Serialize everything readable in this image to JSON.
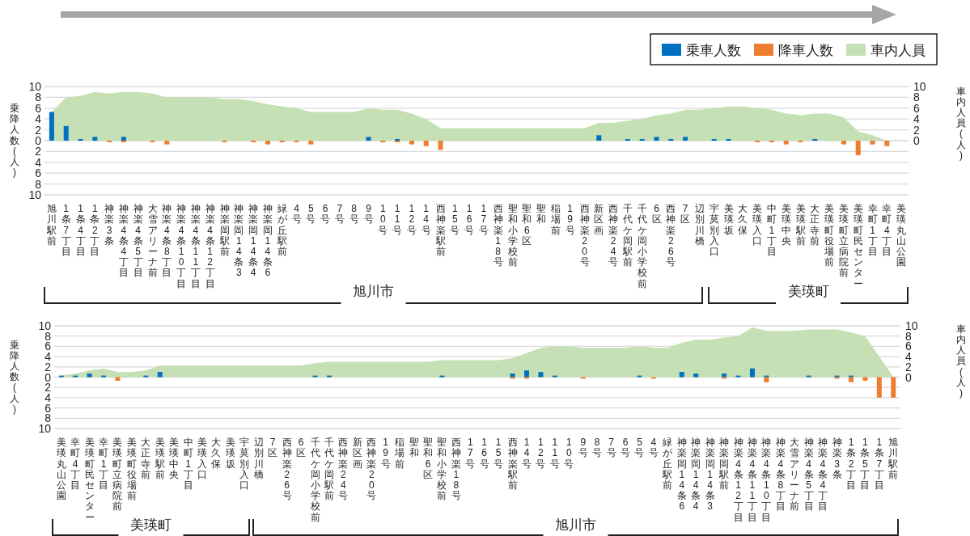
{
  "chart_data": [
    {
      "type": "bar",
      "ylabel": "乗降人数(人)",
      "y2label": "車内人員(人)",
      "legend": "top right",
      "grid": "y",
      "ylim": [
        -10,
        10
      ],
      "y2lim": [
        -10,
        10
      ],
      "yticks": [
        10,
        8,
        6,
        4,
        2,
        0,
        {
          "value": -2,
          "label": "2"
        },
        {
          "value": -4,
          "label": "4"
        },
        {
          "value": -6,
          "label": "6"
        },
        {
          "value": -8,
          "label": "8"
        },
        {
          "value": -10,
          "label": "10"
        }
      ],
      "y2ticks": [
        0,
        2,
        4,
        6,
        8,
        10
      ],
      "annotations": [
        "旭川市",
        "美瑛町"
      ],
      "categories": [
        "旭川駅前",
        "1条7丁目",
        "1条4丁目",
        "1条2丁目",
        "神楽3条",
        "神楽4条4丁目",
        "神楽4条5丁目",
        "大雪アリーナ前",
        "神楽4条8丁目",
        "神楽4条10丁目",
        "神楽4条11丁目",
        "神楽4条12丁目",
        "神楽岡駅前",
        "神楽岡14条3",
        "神楽岡14条4",
        "神楽岡14条6",
        "緑が丘駅前",
        "4号",
        "5号",
        "6号",
        "7号",
        "8号",
        "9号",
        "10号",
        "11号",
        "12号",
        "14号",
        "西神楽駅前",
        "15号",
        "16号",
        "17号",
        "西神楽18号",
        "聖和小学校前",
        "聖和6区",
        "聖和",
        "稲場前",
        "19号",
        "西神楽20号",
        "新区画",
        "西神楽24号",
        "千代ケ岡駅前",
        "千代ケ岡小学校前",
        "6区",
        "西神楽26号",
        "7区",
        "辺別川橋",
        "宇莫別入口",
        "美瑛坂",
        "大久保",
        "美瑛入口",
        "中町1丁目",
        "美瑛中央",
        "美瑛駅前",
        "大正寺前",
        "美瑛町役場前",
        "美瑛町立病院前",
        "美瑛町民センター",
        "幸町1丁目",
        "幸町4丁目",
        "美瑛丸山公園"
      ],
      "series": [
        {
          "name": "乗車人数",
          "color": "#0070c0",
          "values": [
            5.3,
            2.7,
            0.3,
            0.7,
            0,
            0.7,
            0,
            0,
            0,
            0,
            0,
            0,
            0,
            0,
            0,
            0,
            0,
            0,
            0,
            0,
            0,
            0,
            0.7,
            0,
            0.3,
            0,
            0,
            0,
            0,
            0,
            0,
            0,
            0,
            0,
            0,
            0,
            0,
            0,
            1.0,
            0,
            0.3,
            0.3,
            0.7,
            0.3,
            0.7,
            0,
            0.3,
            0.3,
            0,
            0,
            0,
            0,
            0,
            0.3,
            0,
            0,
            0,
            0,
            0,
            0
          ]
        },
        {
          "name": "降車人数",
          "color": "#ed7d31",
          "values": [
            0,
            0,
            0,
            0,
            -0.3,
            -0.3,
            0,
            -0.3,
            -0.7,
            0,
            0,
            0,
            -0.3,
            0,
            -0.3,
            -0.7,
            -0.3,
            -0.3,
            -0.7,
            0,
            0,
            0,
            0,
            -0.3,
            -0.3,
            -0.7,
            -1.0,
            -1.7,
            0,
            0,
            0,
            0,
            0,
            0,
            0,
            0,
            0,
            0,
            0,
            0,
            0,
            0,
            0,
            0,
            0,
            0,
            0,
            0,
            0,
            -0.3,
            -0.3,
            -0.7,
            -0.3,
            0,
            0,
            -0.7,
            -2.7,
            -0.7,
            -1.0,
            0
          ]
        },
        {
          "name": "車内人員",
          "type": "area",
          "axis": "y2",
          "color": "#c5e0b4",
          "values": [
            5.3,
            8.0,
            8.3,
            9.0,
            8.7,
            9.0,
            9.0,
            8.7,
            8.0,
            8.0,
            8.0,
            8.0,
            7.7,
            7.7,
            7.3,
            6.7,
            6.3,
            6.0,
            5.3,
            5.3,
            5.3,
            5.3,
            6.0,
            5.7,
            5.7,
            5.0,
            4.0,
            2.3,
            2.3,
            2.3,
            2.3,
            2.3,
            2.3,
            2.3,
            2.3,
            2.3,
            2.3,
            2.3,
            3.3,
            3.3,
            3.7,
            4.0,
            4.7,
            5.0,
            5.7,
            5.7,
            6.0,
            6.3,
            6.3,
            6.0,
            5.7,
            5.0,
            4.7,
            5.0,
            5.0,
            4.3,
            1.7,
            1.0,
            0,
            null
          ]
        }
      ]
    },
    {
      "type": "bar",
      "ylabel": "乗降人数(人)",
      "y2label": "車内人員(人)",
      "grid": "y",
      "ylim": [
        -10,
        10
      ],
      "y2lim": [
        -10,
        10
      ],
      "yticks": [
        10,
        8,
        6,
        4,
        2,
        0,
        {
          "value": -2,
          "label": "2"
        },
        {
          "value": -4,
          "label": "4"
        },
        {
          "value": -6,
          "label": "6"
        },
        {
          "value": -8,
          "label": "8"
        },
        {
          "value": -10,
          "label": "10"
        }
      ],
      "y2ticks": [
        0,
        2,
        4,
        6,
        8,
        10
      ],
      "annotations": [
        "美瑛町",
        "旭川市"
      ],
      "categories": [
        "美瑛丸山公園",
        "幸町4丁目",
        "美瑛町民センター",
        "幸町1丁目",
        "美瑛町立病院前",
        "美瑛町役場前",
        "大正寺前",
        "美瑛駅前",
        "美瑛中央",
        "中町1丁目",
        "美瑛入口",
        "大久保",
        "美瑛坂",
        "宇莫別入口",
        "辺別川橋",
        "7区",
        "西神楽26号",
        "6区",
        "千代ケ岡小学校前",
        "千代ケ岡駅前",
        "西神楽24号",
        "新区画",
        "西神楽20号",
        "19号",
        "稲場前",
        "聖和",
        "聖和6区",
        "聖和小学校前",
        "西神楽18号",
        "17号",
        "16号",
        "15号",
        "西神楽駅前",
        "14号",
        "12号",
        "11号",
        "10号",
        "9号",
        "8号",
        "7号",
        "6号",
        "5号",
        "4号",
        "緑が丘駅前",
        "神楽岡14条6",
        "神楽岡14条4",
        "神楽岡14条3",
        "神楽岡駅前",
        "神楽4条12丁目",
        "神楽4条11丁目",
        "神楽4条10丁目",
        "神楽4条8丁目",
        "大雪アリーナ前",
        "神楽4条5丁目",
        "神楽4条4丁目",
        "神楽3条",
        "1条2丁目",
        "1条5丁目",
        "1条7丁目",
        "旭川駅前"
      ],
      "series": [
        {
          "color": "#0070c0",
          "values": [
            0.3,
            0.3,
            0.7,
            0.3,
            0,
            0,
            0.3,
            1.0,
            0,
            0,
            0,
            0,
            0,
            0,
            0,
            0,
            0,
            0,
            0.3,
            0.3,
            0,
            0,
            0,
            0,
            0,
            0,
            0,
            0.3,
            0,
            0,
            0,
            0,
            0.7,
            1.3,
            1.0,
            0.3,
            0,
            0,
            0,
            0,
            0,
            0.3,
            0,
            0,
            1.0,
            0.7,
            0,
            0.7,
            0.3,
            1.7,
            0.3,
            0,
            0,
            0.3,
            0,
            0.3,
            0.3,
            0,
            0,
            0
          ]
        },
        {
          "color": "#ed7d31",
          "values": [
            0,
            0,
            0,
            0,
            -0.7,
            0,
            0,
            0,
            0,
            0,
            0,
            0,
            0,
            0,
            0,
            0,
            0,
            0,
            0,
            0,
            0,
            0,
            0,
            0,
            0,
            0,
            0,
            0,
            0,
            0,
            0,
            0,
            -0.3,
            -0.3,
            0,
            0,
            0,
            -0.3,
            0,
            0,
            0,
            0,
            -0.3,
            0,
            0,
            0,
            0,
            -0.3,
            0,
            0,
            -1.0,
            0,
            0,
            0,
            0,
            -0.3,
            -1.0,
            -0.7,
            -4.0,
            -4.0
          ]
        },
        {
          "type": "area",
          "axis": "y2",
          "color": "#c5e0b4",
          "values": [
            0.3,
            0.7,
            1.3,
            1.7,
            1.0,
            1.0,
            1.3,
            2.3,
            2.3,
            2.3,
            2.3,
            2.3,
            2.3,
            2.3,
            2.3,
            2.3,
            2.3,
            2.3,
            2.7,
            3.0,
            3.0,
            3.0,
            3.0,
            3.0,
            3.0,
            3.0,
            3.0,
            3.3,
            3.3,
            3.3,
            3.3,
            3.3,
            3.7,
            4.7,
            5.7,
            6.0,
            6.0,
            5.7,
            5.7,
            5.7,
            5.7,
            6.0,
            5.7,
            5.7,
            6.7,
            7.3,
            7.3,
            7.7,
            8.0,
            9.7,
            9.0,
            9.0,
            9.0,
            9.3,
            9.3,
            9.3,
            8.7,
            8.0,
            4.0,
            0
          ]
        }
      ]
    }
  ]
}
